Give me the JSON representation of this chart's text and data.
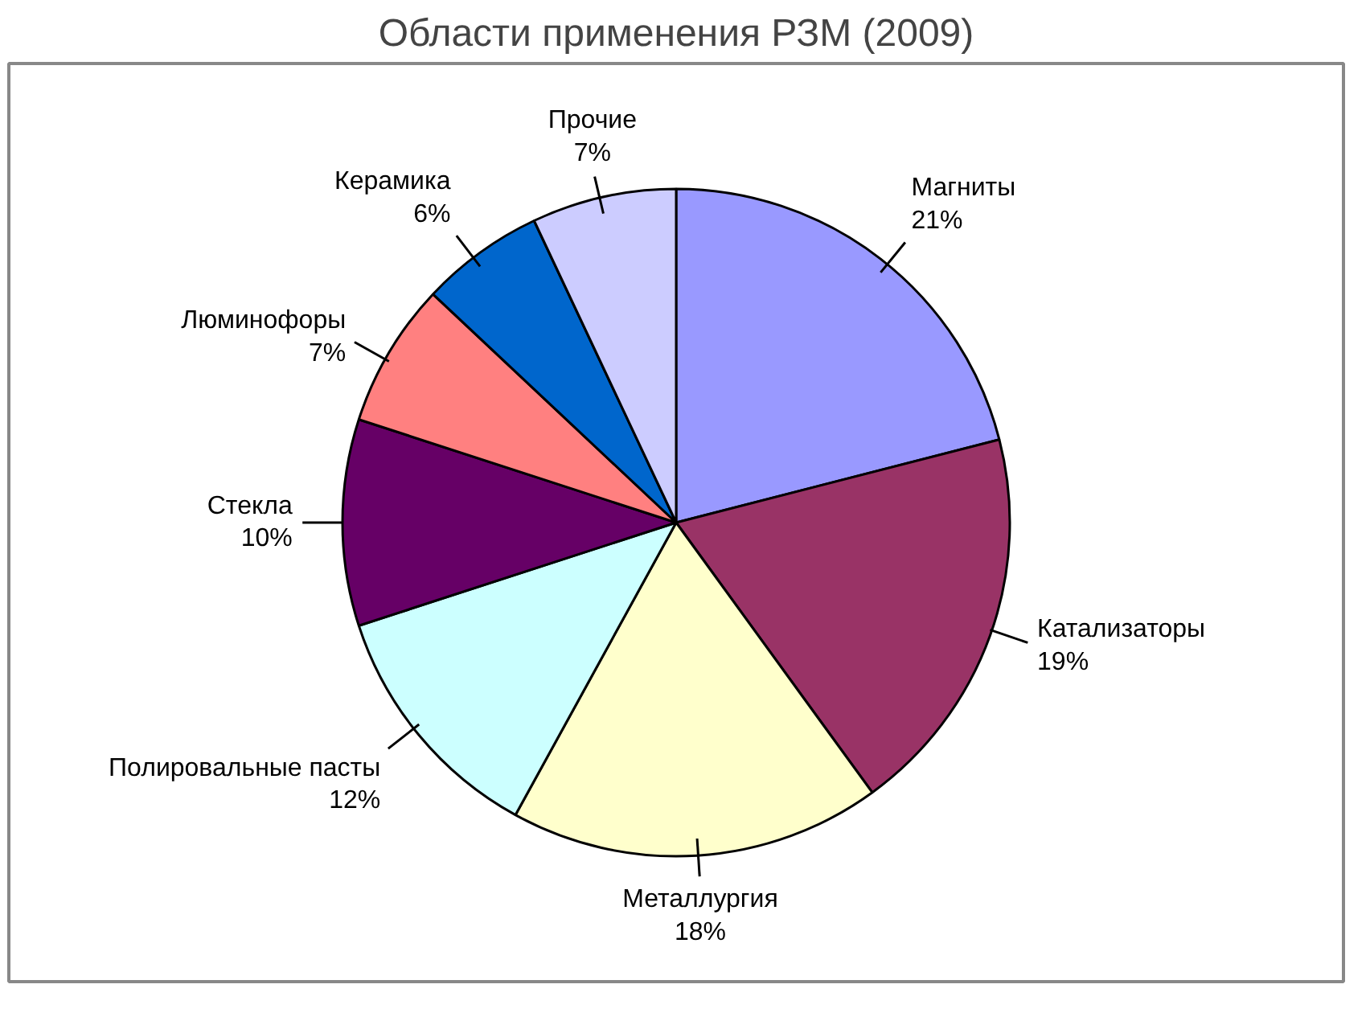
{
  "chart_data": {
    "type": "pie",
    "title": "Области применения РЗМ (2009)",
    "categories": [
      "Магниты",
      "Катализаторы",
      "Металлургия",
      "Полировальные пасты",
      "Стекла",
      "Люминофоры",
      "Керамика",
      "Прочие"
    ],
    "values": [
      21,
      19,
      18,
      12,
      10,
      7,
      6,
      7
    ],
    "value_labels": [
      "21%",
      "19%",
      "18%",
      "12%",
      "10%",
      "7%",
      "6%",
      "7%"
    ],
    "colors": [
      "#9999ff",
      "#993366",
      "#ffffcc",
      "#ccffff",
      "#660066",
      "#ff8080",
      "#0066cc",
      "#ccccff"
    ]
  }
}
